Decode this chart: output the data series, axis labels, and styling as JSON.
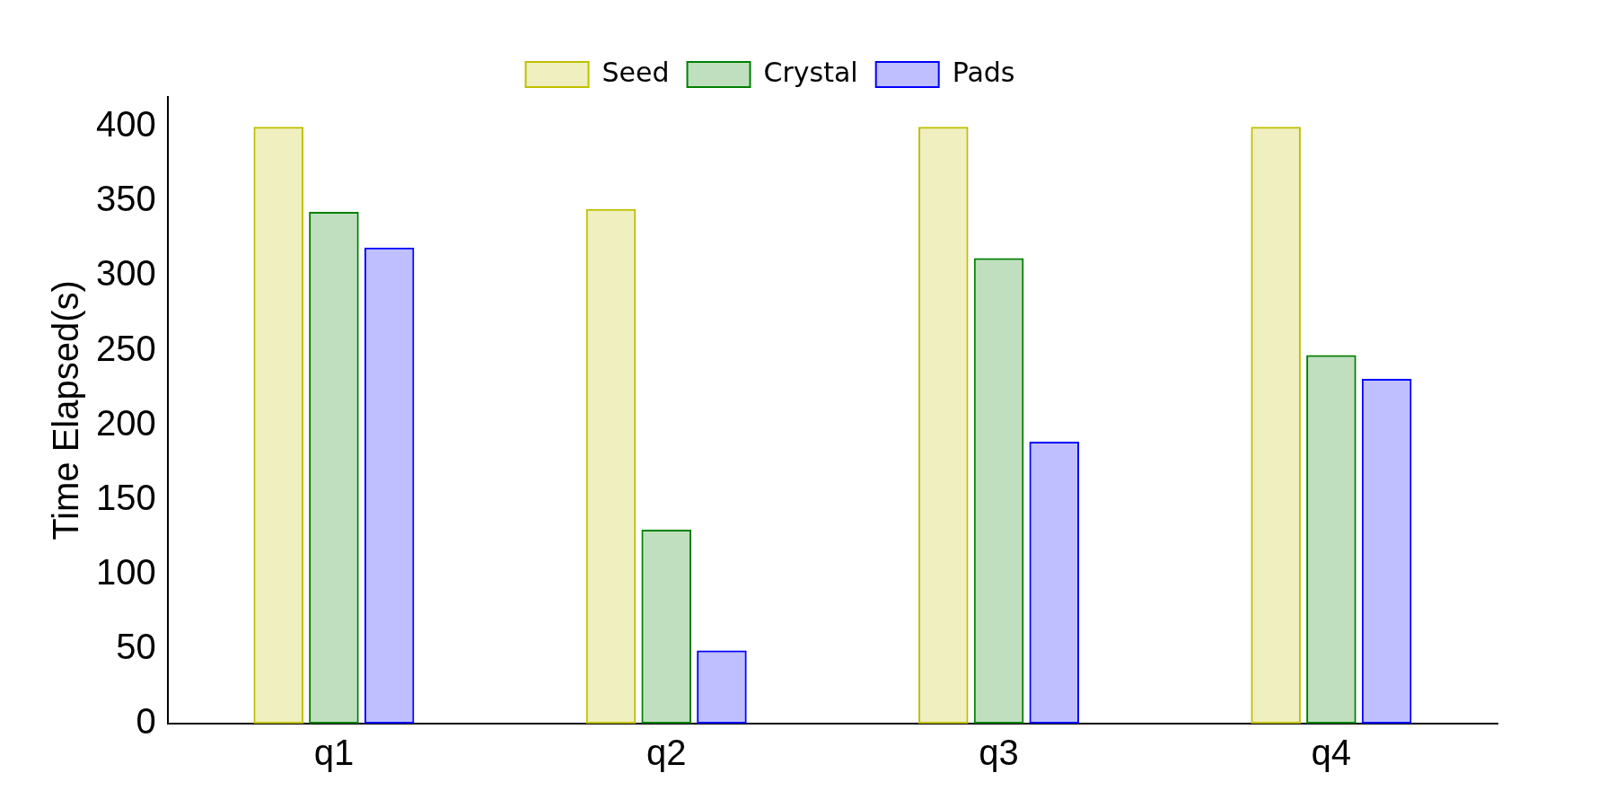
{
  "chart_data": {
    "type": "bar",
    "ylabel": "Time Elapsed(s)",
    "categories": [
      "q1",
      "q2",
      "q3",
      "q4"
    ],
    "series": [
      {
        "name": "Seed",
        "color": "#bfbf00",
        "values": [
          400,
          345,
          400,
          400
        ]
      },
      {
        "name": "Crystal",
        "color": "#008000",
        "values": [
          343,
          130,
          312,
          247
        ]
      },
      {
        "name": "Pads",
        "color": "#0000ff",
        "values": [
          319,
          49,
          189,
          231
        ]
      }
    ],
    "ylim": [
      0,
      420
    ],
    "yticks": [
      0,
      50,
      100,
      150,
      200,
      250,
      300,
      350,
      400
    ],
    "grid": false,
    "legend": "top"
  }
}
